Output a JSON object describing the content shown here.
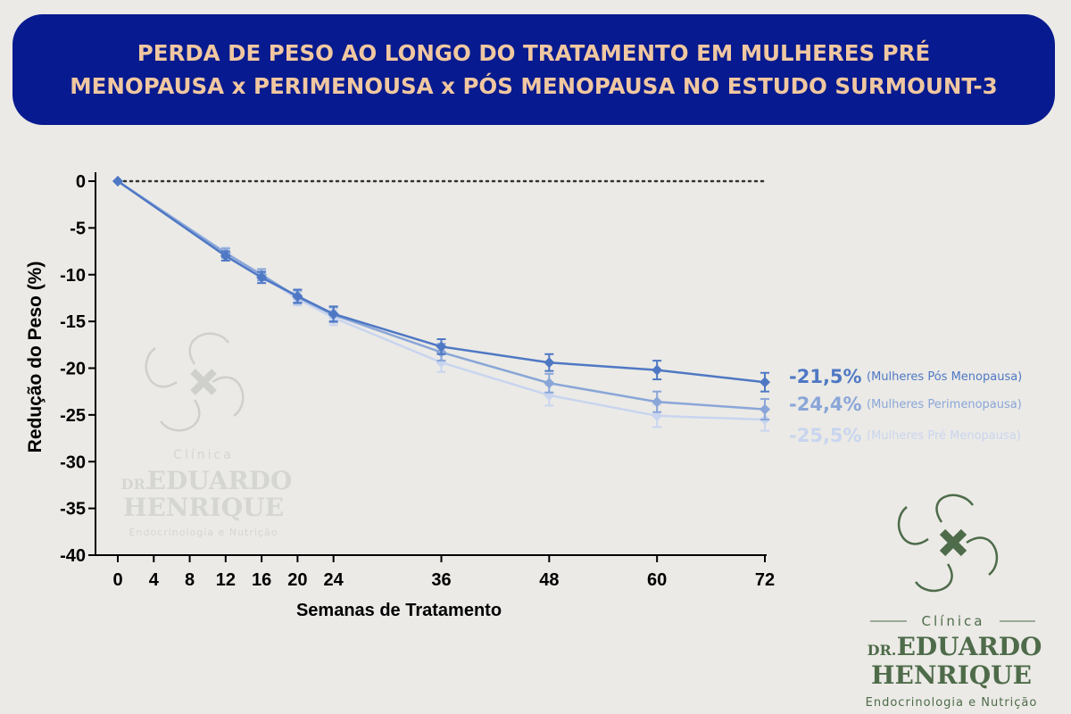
{
  "title": {
    "line1": "PERDA DE PESO AO LONGO DO TRATAMENTO EM MULHERES PRÉ",
    "line2": "MENOPAUSA x PERIMENOUSA x PÓS MENOPAUSA NO ESTUDO SURMOUNT-3"
  },
  "watermark": {
    "clinic": "Clínica",
    "dr": "DR.",
    "name1": "EDUARDO",
    "name2": "HENRIQUE",
    "specialty": "Endocrinologia e Nutrição"
  },
  "logo": {
    "clinic": "Clínica",
    "dr": "DR.",
    "name1": "EDUARDO",
    "name2": "HENRIQUE",
    "specialty": "Endocrinologia e Nutrição",
    "color": "#4e6b4a"
  },
  "chart_data": {
    "type": "line",
    "xlabel": "Semanas de Tratamento",
    "ylabel": "Redução do Peso (%)",
    "x_ticks": [
      0,
      4,
      8,
      12,
      16,
      20,
      24,
      36,
      48,
      60,
      72
    ],
    "y_ticks": [
      0,
      -5,
      -10,
      -15,
      -20,
      -25,
      -30,
      -35,
      -40
    ],
    "xlim": [
      0,
      72
    ],
    "ylim": [
      -40,
      0
    ],
    "reference_line": 0,
    "series": [
      {
        "name": "(Mulheres Pós Menopausa)",
        "end_label": "-21,5%",
        "color": "#4f78c4",
        "x": [
          0,
          12,
          16,
          20,
          24,
          36,
          48,
          60,
          72
        ],
        "y": [
          0,
          -8.0,
          -10.3,
          -12.3,
          -14.2,
          -17.7,
          -19.4,
          -20.2,
          -21.5
        ],
        "err": [
          0,
          0.5,
          0.6,
          0.7,
          0.8,
          0.8,
          0.9,
          1.0,
          1.0
        ]
      },
      {
        "name": "(Mulheres Perimenopausa)",
        "end_label": "-24,4%",
        "color": "#8aa6d8",
        "x": [
          0,
          12,
          16,
          20,
          24,
          36,
          48,
          60,
          72
        ],
        "y": [
          0,
          -7.7,
          -10.0,
          -12.4,
          -14.3,
          -18.3,
          -21.6,
          -23.6,
          -24.4
        ],
        "err": [
          0,
          0.5,
          0.6,
          0.7,
          0.8,
          0.9,
          1.0,
          1.1,
          1.1
        ]
      },
      {
        "name": "(Mulheres Pré Menopausa)",
        "end_label": "-25,5%",
        "color": "#c9d5ef",
        "x": [
          0,
          12,
          16,
          20,
          24,
          36,
          48,
          60,
          72
        ],
        "y": [
          0,
          -7.6,
          -10.1,
          -12.6,
          -14.6,
          -19.4,
          -22.9,
          -25.1,
          -25.5
        ],
        "err": [
          0,
          0.5,
          0.6,
          0.7,
          0.8,
          1.0,
          1.1,
          1.2,
          1.2
        ]
      }
    ]
  }
}
